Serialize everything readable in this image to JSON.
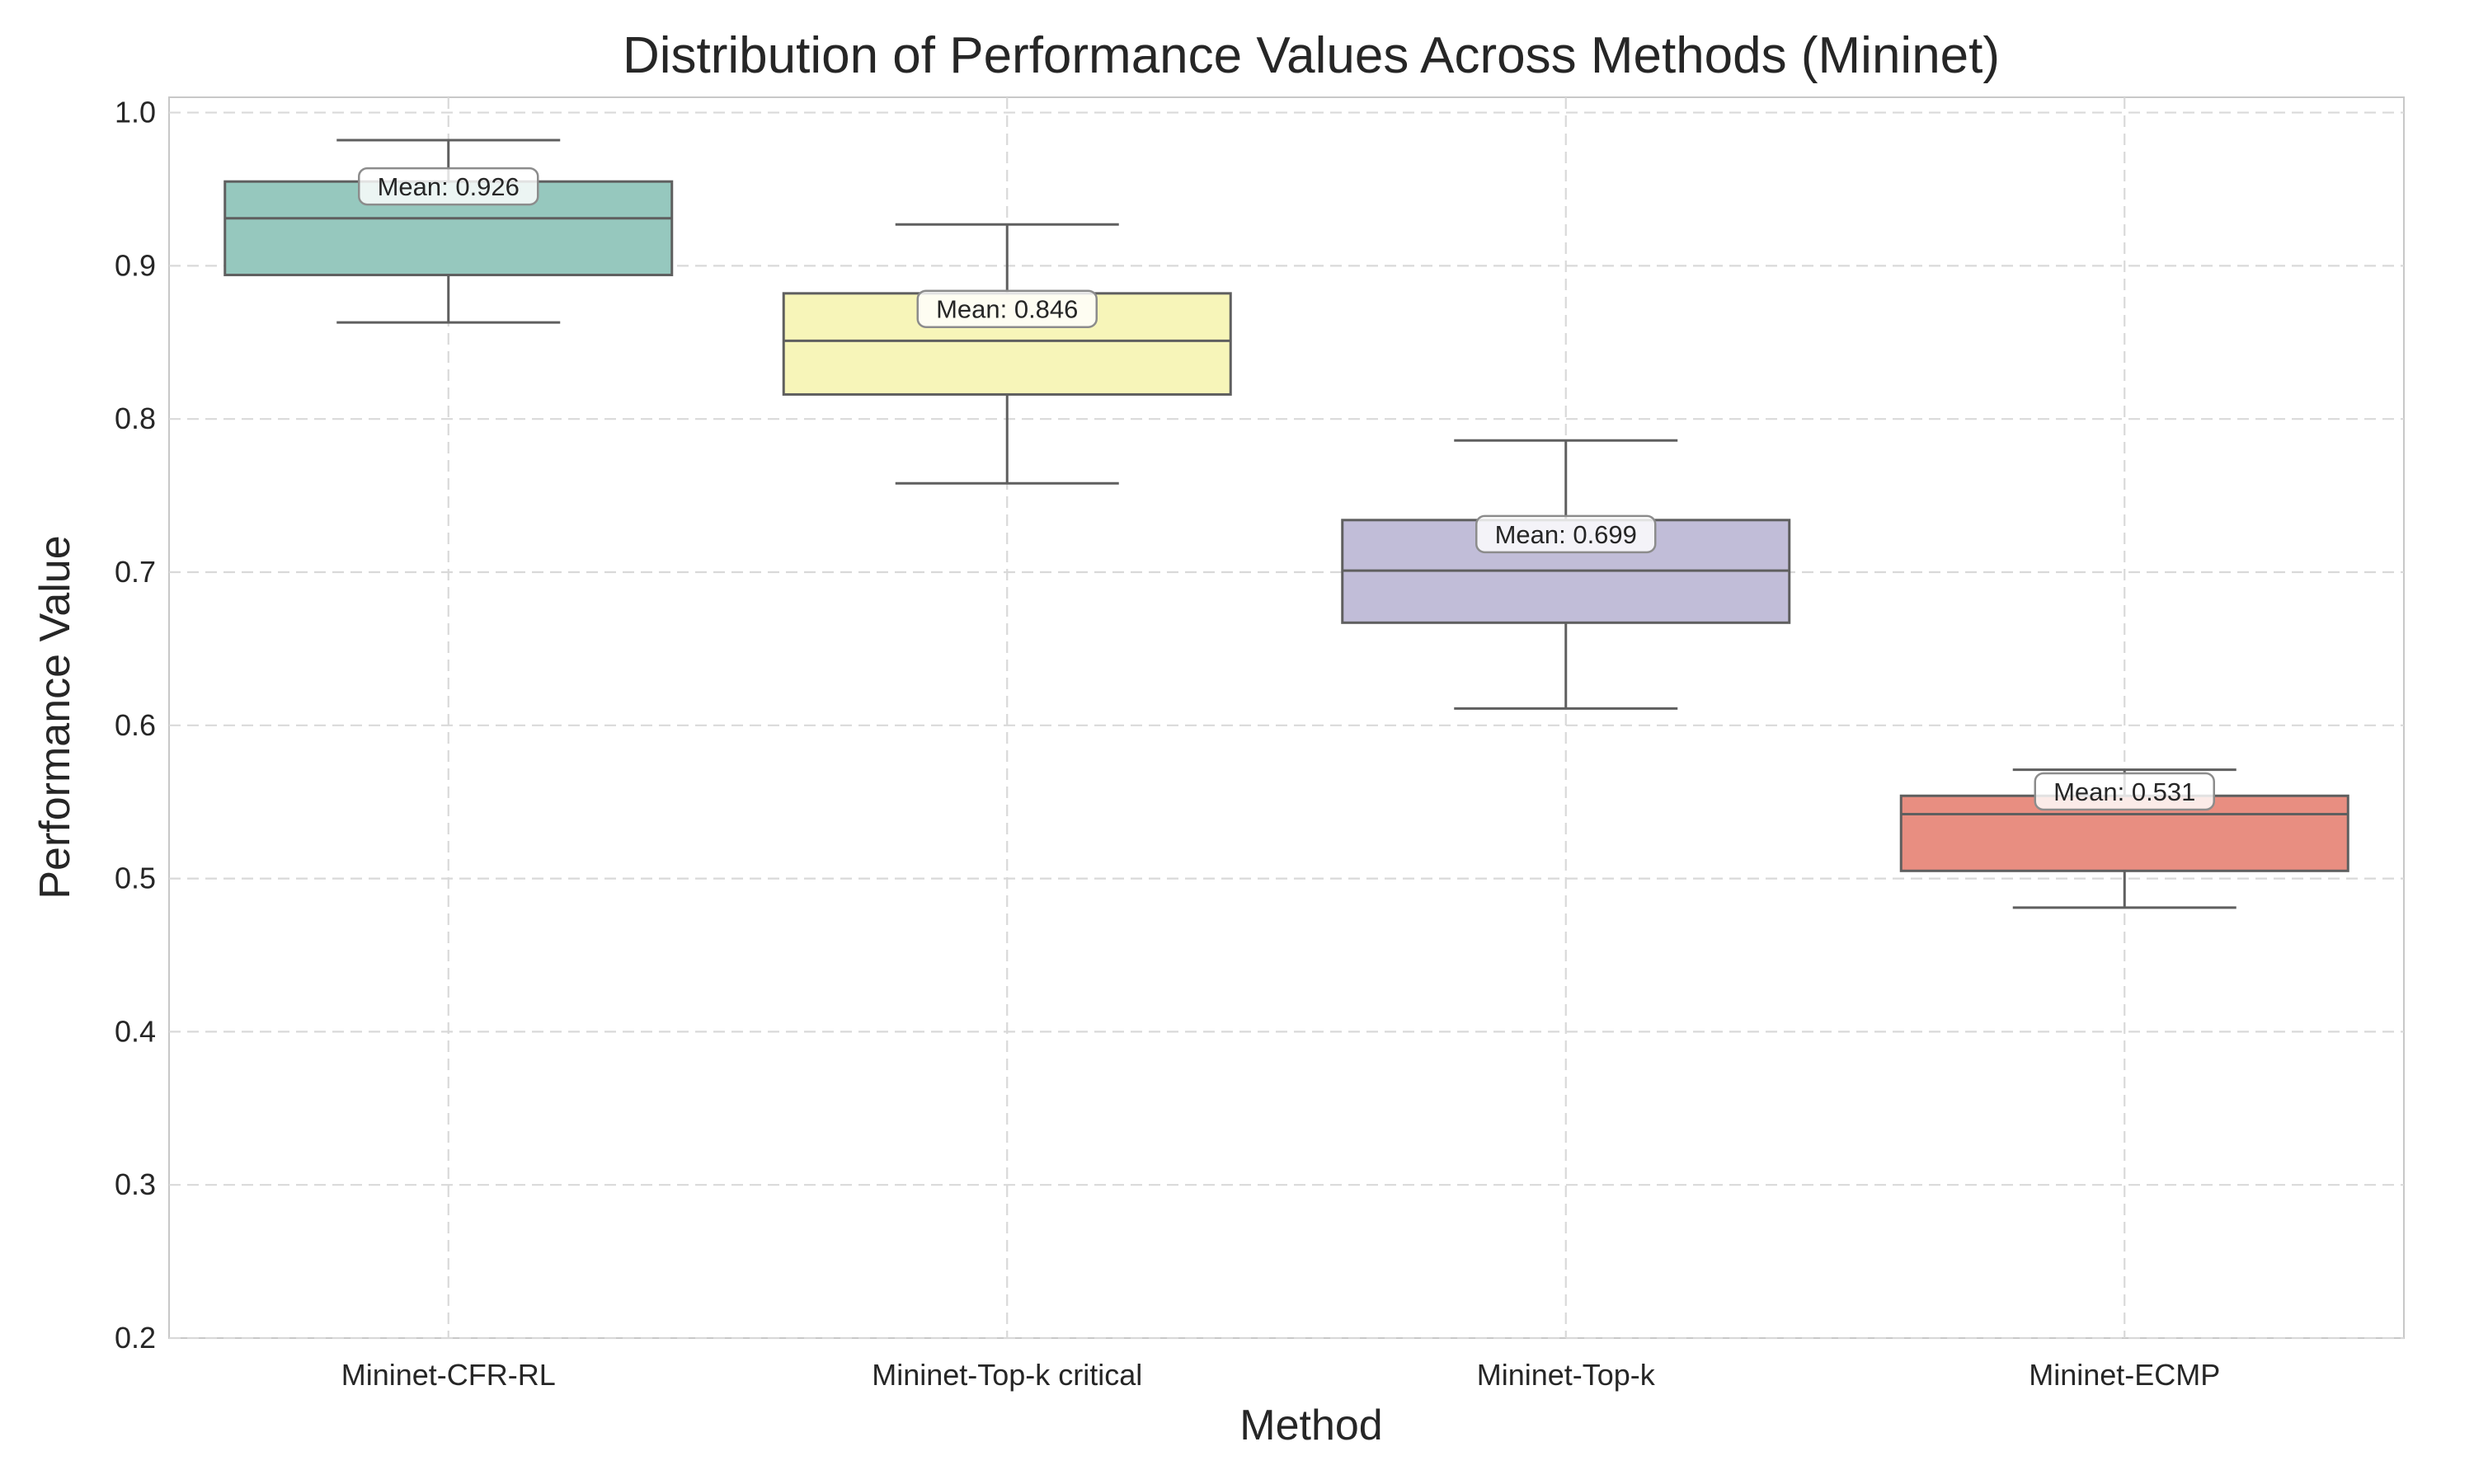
{
  "chart_data": {
    "type": "box",
    "title": "Distribution of Performance Values Across Methods (Mininet)",
    "xlabel": "Method",
    "ylabel": "Performance Value",
    "ylim": [
      0.2,
      1.01
    ],
    "yticks": [
      0.2,
      0.3,
      0.4,
      0.5,
      0.6,
      0.7,
      0.8,
      0.9,
      1.0
    ],
    "ytick_labels": [
      "0.2",
      "0.3",
      "0.4",
      "0.5",
      "0.6",
      "0.7",
      "0.8",
      "0.9",
      "1.0"
    ],
    "grid": true,
    "legend": "none",
    "categories": [
      "Mininet-CFR-RL",
      "Mininet-Top-k critical",
      "Mininet-Top-k",
      "Mininet-ECMP"
    ],
    "boxes": [
      {
        "min": 0.863,
        "q1": 0.894,
        "median": 0.931,
        "q3": 0.955,
        "max": 0.982,
        "mean": 0.926,
        "mean_label": "Mean: 0.926",
        "color": "#96c8be"
      },
      {
        "min": 0.758,
        "q1": 0.816,
        "median": 0.851,
        "q3": 0.882,
        "max": 0.927,
        "mean": 0.846,
        "mean_label": "Mean: 0.846",
        "color": "#f7f5b9"
      },
      {
        "min": 0.611,
        "q1": 0.667,
        "median": 0.701,
        "q3": 0.734,
        "max": 0.786,
        "mean": 0.699,
        "mean_label": "Mean: 0.699",
        "color": "#c1bdd8"
      },
      {
        "min": 0.481,
        "q1": 0.505,
        "median": 0.542,
        "q3": 0.554,
        "max": 0.571,
        "mean": 0.531,
        "mean_label": "Mean: 0.531",
        "color": "#e88e81"
      }
    ]
  }
}
